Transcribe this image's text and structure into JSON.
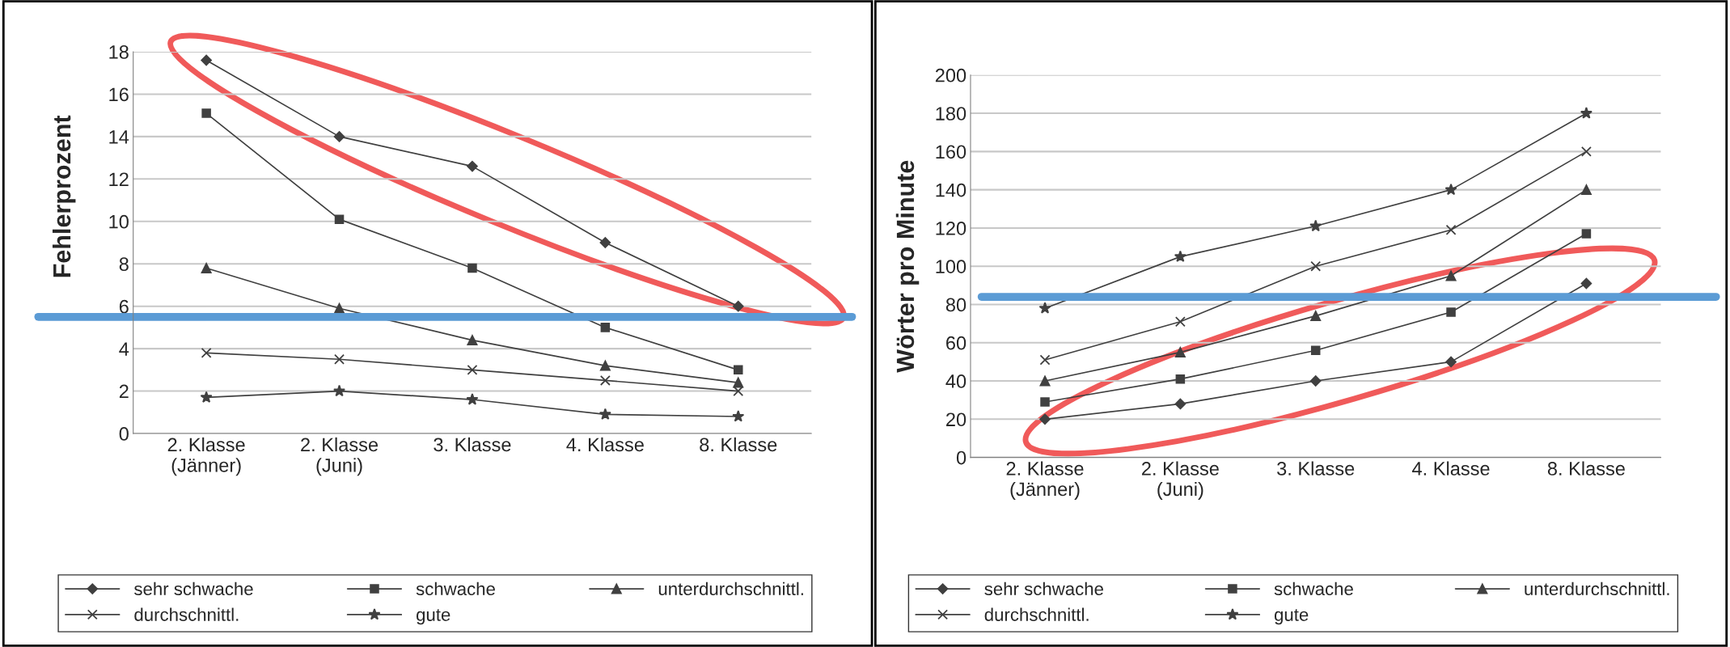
{
  "chart_data": [
    {
      "type": "line",
      "ylabel": "Fehlerprozent",
      "categories": [
        "2. Klasse\n(Jänner)",
        "2. Klasse\n(Juni)",
        "3. Klasse",
        "4. Klasse",
        "8. Klasse"
      ],
      "ylim": [
        0,
        18
      ],
      "yticks": [
        0,
        2,
        4,
        6,
        8,
        10,
        12,
        14,
        16,
        18
      ],
      "grid": "y",
      "legend": "bottom",
      "ref_lines": [
        {
          "axis": "y",
          "value": 5.5,
          "color": "#5b9bd5"
        }
      ],
      "series": [
        {
          "name": "sehr schwache",
          "color": "#404040",
          "marker": "diamond",
          "values": [
            17.6,
            14.0,
            12.6,
            9.0,
            6.0
          ]
        },
        {
          "name": "schwache",
          "color": "#404040",
          "marker": "square",
          "values": [
            15.1,
            10.1,
            7.8,
            5.0,
            3.0
          ]
        },
        {
          "name": "unterdurchschnittl.",
          "color": "#404040",
          "marker": "triangle",
          "values": [
            7.8,
            5.9,
            4.4,
            3.2,
            2.4
          ]
        },
        {
          "name": "durchschnittl.",
          "color": "#404040",
          "marker": "cross",
          "values": [
            3.8,
            3.5,
            3.0,
            2.5,
            2.0
          ]
        },
        {
          "name": "gute",
          "color": "#404040",
          "marker": "star",
          "values": [
            1.7,
            2.0,
            1.6,
            0.9,
            0.8
          ]
        }
      ]
    },
    {
      "type": "line",
      "ylabel": "Wörter pro Minute",
      "categories": [
        "2. Klasse\n(Jänner)",
        "2. Klasse\n(Juni)",
        "3. Klasse",
        "4. Klasse",
        "8. Klasse"
      ],
      "ylim": [
        0,
        200
      ],
      "yticks": [
        0,
        20,
        40,
        60,
        80,
        100,
        120,
        140,
        160,
        180,
        200
      ],
      "grid": "y",
      "legend": "bottom",
      "ref_lines": [
        {
          "axis": "y",
          "value": 84,
          "color": "#5b9bd5"
        }
      ],
      "series": [
        {
          "name": "sehr schwache",
          "color": "#404040",
          "marker": "diamond",
          "values": [
            20,
            28,
            40,
            50,
            91
          ]
        },
        {
          "name": "schwache",
          "color": "#404040",
          "marker": "square",
          "values": [
            29,
            41,
            56,
            76,
            117
          ]
        },
        {
          "name": "unterdurchschnittl.",
          "color": "#404040",
          "marker": "triangle",
          "values": [
            40,
            55,
            74,
            95,
            140
          ]
        },
        {
          "name": "durchschnittl.",
          "color": "#404040",
          "marker": "cross",
          "values": [
            51,
            71,
            100,
            119,
            160
          ]
        },
        {
          "name": "gute",
          "color": "#404040",
          "marker": "star",
          "values": [
            78,
            105,
            121,
            140,
            180
          ]
        }
      ]
    }
  ]
}
